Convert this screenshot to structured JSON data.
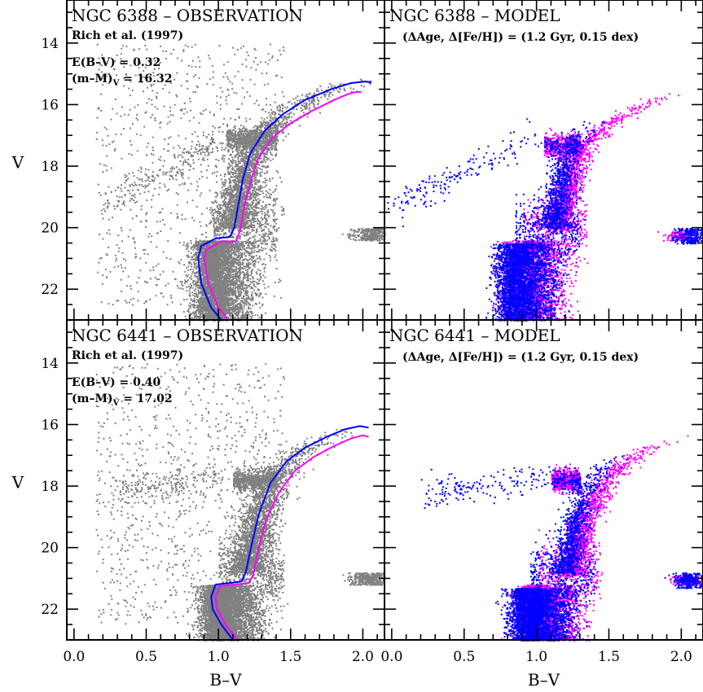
{
  "chart_data": [
    {
      "type": "scatter",
      "title": "NGC 6388 – OBSERVATION",
      "subtitle": "Rich et al. (1997)",
      "annotations": [
        "E(B–V) = 0.32",
        "(m–M)",
        "V",
        " = 16.32"
      ],
      "xlabel": "",
      "ylabel": "V",
      "xlim": [
        -0.05,
        2.15
      ],
      "ylim": [
        23.0,
        12.6
      ],
      "y_inverted": true,
      "xticks": [],
      "yticks": [
        "14",
        "16",
        "18",
        "20",
        "22"
      ],
      "point_color": "#808080",
      "features": {
        "ms_turnoff_color": 0.95,
        "sgb_V": 20.4,
        "hb_red_clump": {
          "x": [
            1.05,
            1.4
          ],
          "V": 17.1
        },
        "blue_hb": {
          "x": [
            0.2,
            1.0
          ],
          "V": [
            19.3,
            17.1
          ]
        },
        "rgb_tip": {
          "x": 2.0,
          "V": 15.1
        },
        "ms_V_range": [
          20.4,
          23.0
        ]
      },
      "series": [
        {
          "color": "#0000ff",
          "x": [
            1.02,
            0.95,
            0.88,
            0.86,
            0.88,
            0.98,
            1.08,
            1.11,
            1.14,
            1.17,
            1.22,
            1.32,
            1.45,
            1.6,
            1.78,
            1.92,
            2.02,
            2.06
          ],
          "y": [
            23.0,
            22.6,
            21.8,
            21.0,
            20.6,
            20.35,
            20.3,
            20.0,
            19.2,
            18.4,
            17.6,
            16.85,
            16.3,
            15.85,
            15.5,
            15.3,
            15.25,
            15.28
          ]
        },
        {
          "color": "#ff00ff",
          "x": [
            1.07,
            1.0,
            0.93,
            0.9,
            0.92,
            1.02,
            1.12,
            1.15,
            1.18,
            1.22,
            1.27,
            1.37,
            1.5,
            1.65,
            1.8,
            1.9,
            1.96,
            1.99
          ],
          "y": [
            23.0,
            22.6,
            21.8,
            21.0,
            20.7,
            20.45,
            20.45,
            20.1,
            19.3,
            18.55,
            17.8,
            17.1,
            16.6,
            16.2,
            15.85,
            15.65,
            15.58,
            15.6
          ]
        }
      ]
    },
    {
      "type": "scatter",
      "title": "NGC 6388 – MODEL",
      "annotations": [
        "(ΔAge, Δ[Fe/H]) = (1.2 Gyr, 0.15 dex)"
      ],
      "xlabel": "",
      "ylabel": "",
      "xlim": [
        -0.05,
        2.15
      ],
      "ylim": [
        23.0,
        12.6
      ],
      "y_inverted": true,
      "xticks": [],
      "yticks": [],
      "series": [
        {
          "color": "#0000ff",
          "features": {
            "blue_hb": {
              "x": [
                0.0,
                1.0
              ],
              "V": [
                19.3,
                17.0
              ]
            },
            "hb_red_clump": {
              "x": [
                1.05,
                1.28
              ],
              "V": 17.3
            },
            "ms_turnoff_color": 0.7,
            "rgb_tip": {
              "x": 1.5,
              "V": 16.5
            }
          }
        },
        {
          "color": "#ff00ff",
          "features": {
            "hb_red_clump": {
              "x": [
                1.05,
                1.3
              ],
              "V": 17.3
            },
            "ms_turnoff_color": 0.75,
            "rgb_tip": {
              "x": 1.9,
              "V": 15.5
            }
          }
        }
      ]
    },
    {
      "type": "scatter",
      "title": "NGC 6441 – OBSERVATION",
      "subtitle": "Rich et al. (1997)",
      "annotations": [
        "E(B–V) = 0.40",
        "(m–M)",
        "V",
        " = 17.02"
      ],
      "xlabel": "B–V",
      "ylabel": "V",
      "xlim": [
        -0.05,
        2.15
      ],
      "ylim": [
        23.0,
        12.6
      ],
      "y_inverted": true,
      "xticks": [
        "0.0",
        "0.5",
        "1.0",
        "1.5",
        "2.0"
      ],
      "yticks": [
        "14",
        "16",
        "18",
        "20",
        "22"
      ],
      "point_color": "#808080",
      "features": {
        "ms_turnoff_color": 1.0,
        "sgb_V": 21.2,
        "hb_red_clump": {
          "x": [
            1.1,
            1.4
          ],
          "V": 17.8
        },
        "blue_hb": {
          "x": [
            0.3,
            1.0
          ],
          "V": [
            18.1,
            17.7
          ]
        },
        "rgb_tip": {
          "x": 2.0,
          "V": 16.1
        },
        "ms_V_range": [
          21.2,
          23.0
        ]
      },
      "series": [
        {
          "color": "#0000ff",
          "x": [
            1.1,
            1.02,
            0.96,
            0.95,
            0.98,
            1.08,
            1.16,
            1.19,
            1.23,
            1.28,
            1.36,
            1.47,
            1.6,
            1.75,
            1.88,
            1.98,
            2.04
          ],
          "y": [
            23.0,
            22.5,
            22.0,
            21.6,
            21.2,
            21.15,
            21.1,
            20.8,
            19.9,
            18.9,
            17.9,
            17.2,
            16.75,
            16.4,
            16.15,
            16.05,
            16.1
          ]
        },
        {
          "color": "#ff00ff",
          "x": [
            1.13,
            1.05,
            0.99,
            0.98,
            1.01,
            1.12,
            1.21,
            1.24,
            1.28,
            1.33,
            1.42,
            1.53,
            1.66,
            1.8,
            1.92,
            2.0,
            2.04
          ],
          "y": [
            23.0,
            22.5,
            22.0,
            21.6,
            21.25,
            21.2,
            21.15,
            20.9,
            20.0,
            19.1,
            18.2,
            17.5,
            17.05,
            16.7,
            16.45,
            16.35,
            16.4
          ]
        }
      ]
    },
    {
      "type": "scatter",
      "title": "NGC 6441 – MODEL",
      "annotations": [
        "(ΔAge, Δ[Fe/H]) = (1.2 Gyr, 0.15 dex)"
      ],
      "xlabel": "B–V",
      "ylabel": "",
      "xlim": [
        -0.05,
        2.15
      ],
      "ylim": [
        23.0,
        12.6
      ],
      "y_inverted": true,
      "xticks": [
        "0.0",
        "0.5",
        "1.0",
        "1.5",
        "2.0"
      ],
      "yticks": [],
      "series": [
        {
          "color": "#0000ff",
          "features": {
            "blue_hb": {
              "x": [
                0.2,
                1.1
              ],
              "V": [
                18.2,
                17.75
              ]
            },
            "hb_red_clump": {
              "x": [
                1.1,
                1.3
              ],
              "V": 17.8
            },
            "ms_turnoff_color": 0.8,
            "rgb_tip": {
              "x": 1.6,
              "V": 17.0
            }
          }
        },
        {
          "color": "#ff00ff",
          "features": {
            "hb_red_clump": {
              "x": [
                1.1,
                1.3
              ],
              "V": 17.8
            },
            "ms_turnoff_color": 0.85,
            "rgb_tip": {
              "x": 2.05,
              "V": 16.3
            }
          }
        }
      ]
    }
  ]
}
